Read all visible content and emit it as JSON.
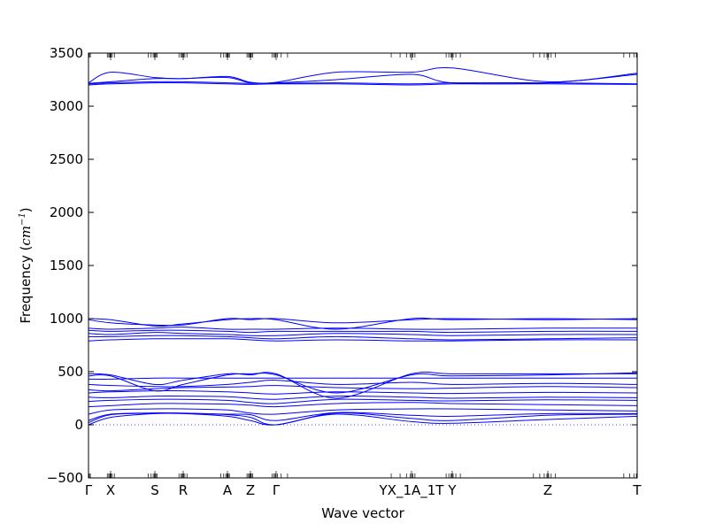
{
  "chart_data": {
    "type": "line",
    "title": "",
    "xlabel": "Wave vector",
    "ylabel": "Frequency",
    "ylabel_unit": "cm",
    "ylabel_exp": "−1",
    "ylim": [
      -500,
      3500
    ],
    "xlim": [
      0,
      31
    ],
    "grid": false,
    "yticks": [
      "−500",
      "0",
      "500",
      "1000",
      "1500",
      "2000",
      "2500",
      "3000",
      "3500"
    ],
    "ytick_values": [
      -500,
      0,
      500,
      1000,
      1500,
      2000,
      2500,
      3000,
      3500
    ],
    "xticks": [
      {
        "label": "Γ",
        "x": 0
      },
      {
        "label": "X",
        "x": 1.25
      },
      {
        "label": "S",
        "x": 3.75
      },
      {
        "label": "R",
        "x": 5.35
      },
      {
        "label": "A",
        "x": 7.85
      },
      {
        "label": "Z",
        "x": 9.15
      },
      {
        "label": "Γ",
        "x": 10.6
      },
      {
        "label": "YX_1A_1T",
        "x": 18.25
      },
      {
        "label": "Y",
        "x": 20.55
      },
      {
        "label": "Z",
        "x": 25.95
      },
      {
        "label": "T",
        "x": 31
      }
    ],
    "zero_line": 0,
    "series_color": "#0000ff",
    "series": [
      {
        "x": [
          0,
          1.25,
          3.75,
          5.35,
          7.85,
          9.15,
          10.6,
          14,
          18.25,
          20.55,
          25.95,
          31
        ],
        "y": [
          0,
          70,
          105,
          105,
          80,
          40,
          0,
          100,
          30,
          15,
          50,
          80
        ]
      },
      {
        "x": [
          0,
          1.25,
          3.75,
          5.35,
          7.85,
          9.15,
          10.6,
          14,
          18.25,
          20.55,
          25.95,
          31
        ],
        "y": [
          20,
          95,
          110,
          108,
          95,
          70,
          0,
          110,
          60,
          40,
          90,
          100
        ]
      },
      {
        "x": [
          0,
          1.25,
          3.75,
          5.35,
          7.85,
          9.15,
          10.6,
          14,
          18.25,
          20.55,
          25.95,
          31
        ],
        "y": [
          40,
          100,
          112,
          110,
          100,
          95,
          40,
          115,
          90,
          80,
          105,
          105
        ]
      },
      {
        "x": [
          0,
          1.25,
          3.75,
          5.35,
          7.85,
          9.15,
          10.6,
          14,
          18.25,
          20.55,
          25.95,
          31
        ],
        "y": [
          100,
          140,
          150,
          150,
          140,
          110,
          100,
          140,
          150,
          150,
          140,
          130
        ]
      },
      {
        "x": [
          0,
          1.25,
          3.75,
          5.35,
          7.85,
          9.15,
          10.6,
          14,
          18.25,
          20.55,
          25.95,
          31
        ],
        "y": [
          170,
          180,
          200,
          200,
          195,
          185,
          170,
          200,
          210,
          200,
          190,
          180
        ]
      },
      {
        "x": [
          0,
          1.25,
          3.75,
          5.35,
          7.85,
          9.15,
          10.6,
          14,
          18.25,
          20.55,
          25.95,
          31
        ],
        "y": [
          220,
          230,
          240,
          240,
          230,
          210,
          200,
          240,
          230,
          225,
          235,
          230
        ]
      },
      {
        "x": [
          0,
          1.25,
          3.75,
          5.35,
          7.85,
          9.15,
          10.6,
          14,
          18.25,
          20.55,
          25.95,
          31
        ],
        "y": [
          260,
          255,
          270,
          270,
          265,
          250,
          240,
          270,
          260,
          250,
          260,
          255
        ]
      },
      {
        "x": [
          0,
          1.25,
          3.75,
          5.35,
          7.85,
          9.15,
          10.6,
          14,
          18.25,
          20.55,
          25.95,
          31
        ],
        "y": [
          300,
          310,
          320,
          320,
          310,
          300,
          290,
          310,
          300,
          295,
          305,
          300
        ]
      },
      {
        "x": [
          0,
          1.25,
          3.75,
          5.35,
          7.85,
          9.15,
          10.6,
          14,
          18.25,
          20.55,
          25.95,
          31
        ],
        "y": [
          330,
          320,
          340,
          350,
          355,
          360,
          370,
          350,
          340,
          345,
          360,
          350
        ]
      },
      {
        "x": [
          0,
          1.25,
          3.75,
          5.35,
          7.85,
          9.15,
          10.6,
          14,
          18.25,
          20.55,
          25.95,
          31
        ],
        "y": [
          380,
          370,
          360,
          360,
          380,
          400,
          420,
          380,
          400,
          380,
          390,
          380
        ]
      },
      {
        "x": [
          0,
          1.25,
          3.75,
          5.35,
          7.85,
          9.15,
          10.6,
          14,
          18.25,
          20.55,
          25.95,
          31
        ],
        "y": [
          430,
          430,
          440,
          440,
          440,
          440,
          440,
          440,
          440,
          440,
          440,
          440
        ]
      },
      {
        "x": [
          0,
          1.25,
          3.75,
          5.35,
          7.85,
          9.15,
          10.6,
          14,
          18.25,
          20.55,
          25.95,
          31
        ],
        "y": [
          480,
          470,
          380,
          420,
          480,
          470,
          480,
          250,
          480,
          480,
          480,
          480
        ]
      },
      {
        "x": [
          0,
          1.25,
          3.75,
          5.35,
          7.85,
          9.15,
          10.6,
          14,
          18.25,
          20.55,
          25.95,
          31
        ],
        "y": [
          460,
          460,
          320,
          380,
          470,
          480,
          470,
          300,
          470,
          460,
          470,
          490
        ]
      },
      {
        "x": [
          0,
          1.25,
          3.75,
          5.35,
          7.85,
          9.15,
          10.6,
          14,
          18.25,
          20.55,
          25.95,
          31
        ],
        "y": [
          790,
          800,
          810,
          810,
          810,
          800,
          790,
          800,
          790,
          790,
          800,
          800
        ]
      },
      {
        "x": [
          0,
          1.25,
          3.75,
          5.35,
          7.85,
          9.15,
          10.6,
          14,
          18.25,
          20.55,
          25.95,
          31
        ],
        "y": [
          830,
          830,
          840,
          840,
          830,
          820,
          810,
          830,
          810,
          800,
          810,
          820
        ]
      },
      {
        "x": [
          0,
          1.25,
          3.75,
          5.35,
          7.85,
          9.15,
          10.6,
          14,
          18.25,
          20.55,
          25.95,
          31
        ],
        "y": [
          860,
          850,
          870,
          860,
          850,
          840,
          840,
          860,
          850,
          840,
          850,
          850
        ]
      },
      {
        "x": [
          0,
          1.25,
          3.75,
          5.35,
          7.85,
          9.15,
          10.6,
          14,
          18.25,
          20.55,
          25.95,
          31
        ],
        "y": [
          890,
          880,
          890,
          890,
          880,
          870,
          880,
          880,
          880,
          870,
          880,
          880
        ]
      },
      {
        "x": [
          0,
          1.25,
          3.75,
          5.35,
          7.85,
          9.15,
          10.6,
          14,
          18.25,
          20.55,
          25.95,
          31
        ],
        "y": [
          910,
          900,
          910,
          920,
          900,
          900,
          900,
          910,
          900,
          900,
          910,
          910
        ]
      },
      {
        "x": [
          0,
          1.25,
          3.75,
          5.35,
          7.85,
          9.15,
          10.6,
          14,
          18.25,
          20.55,
          25.95,
          31
        ],
        "y": [
          990,
          960,
          940,
          940,
          1000,
          990,
          1000,
          960,
          990,
          1000,
          990,
          1000
        ]
      },
      {
        "x": [
          0,
          1.25,
          3.75,
          5.35,
          7.85,
          9.15,
          10.6,
          14,
          18.25,
          20.55,
          25.95,
          31
        ],
        "y": [
          1000,
          990,
          930,
          950,
          990,
          1000,
          990,
          900,
          1000,
          990,
          1000,
          990
        ]
      },
      {
        "x": [
          0,
          1.25,
          3.75,
          5.35,
          7.85,
          9.15,
          10.6,
          14,
          18.25,
          20.55,
          25.95,
          31
        ],
        "y": [
          3200,
          3210,
          3220,
          3220,
          3210,
          3205,
          3210,
          3210,
          3200,
          3210,
          3210,
          3205
        ]
      },
      {
        "x": [
          0,
          1.25,
          3.75,
          5.35,
          7.85,
          9.15,
          10.6,
          14,
          18.25,
          20.55,
          25.95,
          31
        ],
        "y": [
          3210,
          3220,
          3230,
          3230,
          3220,
          3215,
          3215,
          3220,
          3210,
          3220,
          3220,
          3210
        ]
      },
      {
        "x": [
          0,
          1.25,
          3.75,
          5.35,
          7.85,
          9.15,
          10.6,
          14,
          18.25,
          20.55,
          25.95,
          31
        ],
        "y": [
          3215,
          3230,
          3260,
          3260,
          3270,
          3220,
          3220,
          3250,
          3300,
          3220,
          3220,
          3300
        ]
      },
      {
        "x": [
          0,
          1.25,
          3.75,
          5.35,
          7.85,
          9.15,
          10.6,
          14,
          18.25,
          20.55,
          25.95,
          31
        ],
        "y": [
          3220,
          3320,
          3270,
          3260,
          3280,
          3225,
          3225,
          3320,
          3320,
          3360,
          3230,
          3310
        ]
      }
    ]
  }
}
